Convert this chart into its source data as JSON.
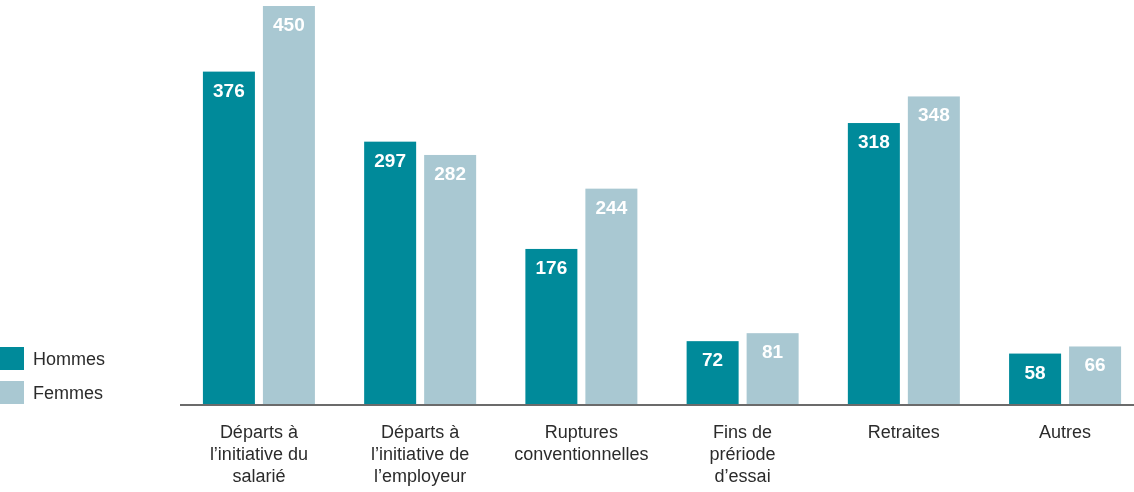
{
  "chart_data": {
    "type": "bar",
    "categories": [
      "Départs à l’initiative du salarié",
      "Départs à l’initiative de l’employeur",
      "Ruptures conventionnelles",
      "Fins de prériode d’essai",
      "Retraites",
      "Autres"
    ],
    "series": [
      {
        "name": "Hommes",
        "color": "#008a9a",
        "values": [
          376,
          297,
          176,
          72,
          318,
          58
        ]
      },
      {
        "name": "Femmes",
        "color": "#a9c8d2",
        "values": [
          450,
          282,
          244,
          81,
          348,
          66
        ]
      }
    ],
    "data_labels": true,
    "legend": "bottom left"
  }
}
